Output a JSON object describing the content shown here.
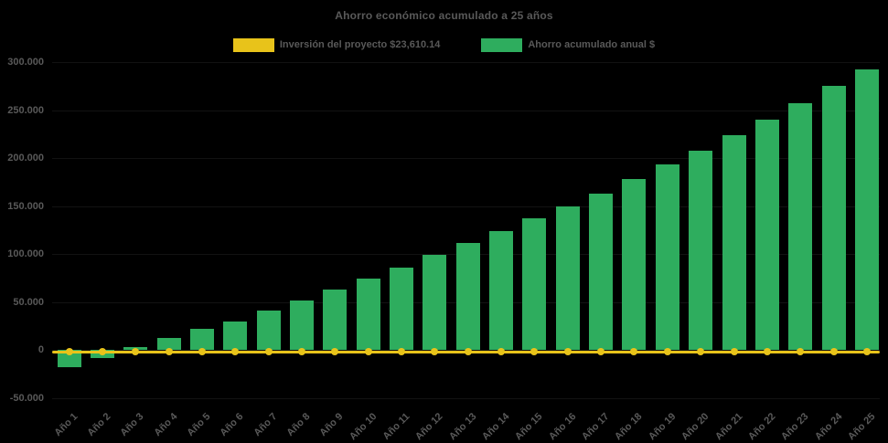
{
  "chart": {
    "title": "Ahorro económico acumulado a 25 años",
    "legend": [
      {
        "label": "Inversión del proyecto $23,610.14",
        "color": "#E8C31A"
      },
      {
        "label": "Ahorro acumulado anual $",
        "color": "#2EAD5E"
      }
    ]
  },
  "chart_data": {
    "type": "bar",
    "title": "Ahorro económico acumulado a 25 años",
    "xlabel": "",
    "ylabel": "",
    "categories": [
      "Año 1",
      "Año 2",
      "Año 3",
      "Año 4",
      "Año 5",
      "Año 6",
      "Año 7",
      "Año 8",
      "Año 9",
      "Año 10",
      "Año 11",
      "Año 12",
      "Año 13",
      "Año 14",
      "Año 15",
      "Año 16",
      "Año 17",
      "Año 18",
      "Año 19",
      "Año 20",
      "Año 21",
      "Año 22",
      "Año 23",
      "Año 24",
      "Año 25"
    ],
    "series": [
      {
        "name": "Inversión del proyecto $23,610.14",
        "type": "line",
        "color": "#E8C31A",
        "marker": "circle",
        "values": [
          0,
          0,
          0,
          0,
          0,
          0,
          0,
          0,
          0,
          0,
          0,
          0,
          0,
          0,
          0,
          0,
          0,
          0,
          0,
          0,
          0,
          0,
          0,
          0,
          0
        ]
      },
      {
        "name": "Ahorro acumulado anual $",
        "type": "bar",
        "color": "#2EAD5E",
        "values": [
          -18000,
          -9000,
          3000,
          12000,
          22000,
          30000,
          41000,
          51500,
          63000,
          74000,
          86000,
          99000,
          111000,
          124000,
          137000,
          150000,
          163000,
          178000,
          193000,
          208000,
          224000,
          240000,
          257000,
          275000,
          292000
        ]
      }
    ],
    "y_ticks": [
      300000,
      250000,
      200000,
      150000,
      100000,
      50000,
      0,
      -50000
    ],
    "y_tick_labels": [
      "300.000",
      "250.000",
      "200.000",
      "150.000",
      "100.000",
      "50.000",
      "0",
      "-50.000"
    ],
    "ylim": [
      -50000,
      300000
    ],
    "grid": false,
    "legend_position": "top",
    "background": "#000000",
    "text_color": "#595959"
  }
}
